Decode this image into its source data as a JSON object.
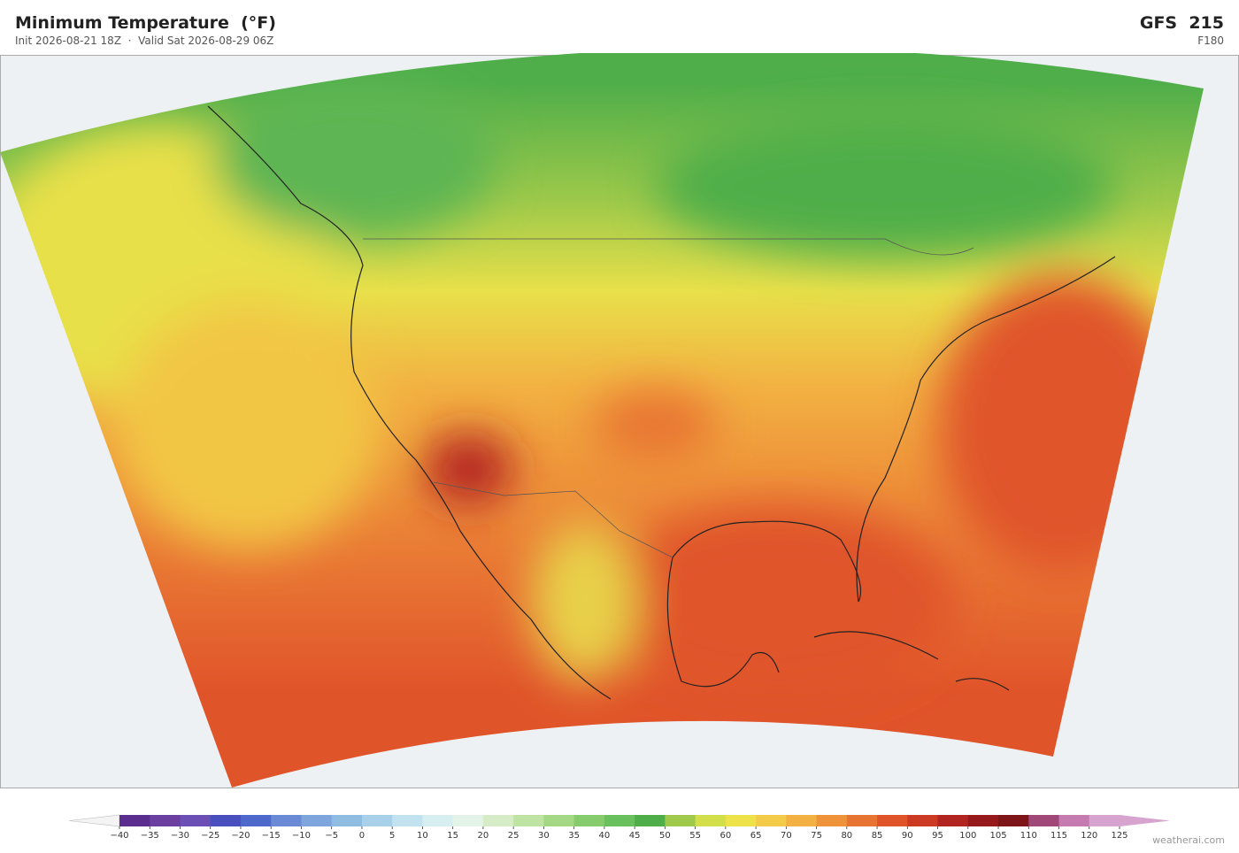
{
  "header": {
    "title": "Minimum Temperature  (°F)",
    "subtitle": "Init 2026-08-21 18Z  ·  Valid Sat 2026-08-29 06Z",
    "model": "GFS  215",
    "forecast_hour": "F180"
  },
  "colorbar": {
    "ticks": [
      {
        "value": -40,
        "label": "−40"
      },
      {
        "value": -35,
        "label": "−35"
      },
      {
        "value": -30,
        "label": "−30"
      },
      {
        "value": -25,
        "label": "−25"
      },
      {
        "value": -20,
        "label": "−20"
      },
      {
        "value": -15,
        "label": "−15"
      },
      {
        "value": -10,
        "label": "−10"
      },
      {
        "value": -5,
        "label": "−5"
      },
      0,
      5,
      10,
      15,
      20,
      25,
      30,
      35,
      40,
      45,
      50,
      55,
      60,
      65,
      70,
      75,
      80,
      85,
      90,
      95,
      100,
      105,
      110,
      115,
      120,
      125
    ],
    "colors": [
      "#5b2d8e",
      "#6a3fa0",
      "#6b4fb5",
      "#4a4fc0",
      "#4f68cc",
      "#6a8ad6",
      "#7ea6dc",
      "#8fbde2",
      "#a8d0e8",
      "#c2e2ef",
      "#d7eef0",
      "#e4f3e8",
      "#d5ecc7",
      "#bfe3a3",
      "#a4d884",
      "#86cc6c",
      "#6abf5e",
      "#4fae4a",
      "#9ec94a",
      "#d2de4a",
      "#eee24a",
      "#f3cb48",
      "#f2b142",
      "#ee933a",
      "#e87433",
      "#e0542a",
      "#cc3a24",
      "#b22420",
      "#961a1c",
      "#7d1418",
      "#a04878",
      "#c57ab0",
      "#d7a3cf"
    ]
  },
  "footer": {
    "credit": "weatherai.com"
  }
}
